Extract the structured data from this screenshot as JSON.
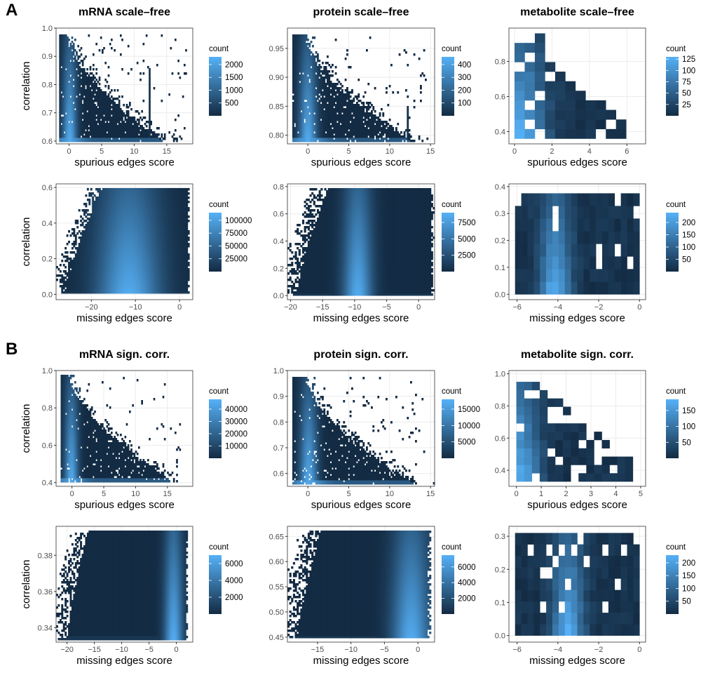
{
  "panels": [
    {
      "label": "A",
      "row": 0
    },
    {
      "label": "B",
      "row": 2
    }
  ],
  "chart_data": [
    {
      "type": "heatmap",
      "id": "A-mrna-spurious",
      "title": "mRNA scale–free",
      "xlabel": "spurious edges score",
      "ylabel": "correlation",
      "xlim": [
        -2,
        19
      ],
      "ylim": [
        0.59,
        1.0
      ],
      "xticks": [
        0,
        5,
        10,
        15
      ],
      "yticks": [
        0.6,
        0.7,
        0.8,
        0.9,
        1.0
      ],
      "yticklabels": [
        "0.6",
        "0.7",
        "0.8",
        "0.9",
        "1.0"
      ],
      "legend_title": "count",
      "legend_max": 2300,
      "legend_ticks": [
        500,
        1000,
        1500,
        2000
      ],
      "shape": "spurious",
      "shape_params": {
        "xmin": -1.5,
        "peak": -0.3,
        "ridge_end": 14.5,
        "vmax": 0.98,
        "vmin": 0.6,
        "ridge_spread": 4,
        "noise_x": 18,
        "spike": 12.3,
        "spike_top": 0.86
      }
    },
    {
      "type": "heatmap",
      "id": "A-protein-spurious",
      "title": "protein scale–free",
      "xlabel": "spurious edges score",
      "ylabel": "",
      "xlim": [
        -2.5,
        15.5
      ],
      "ylim": [
        0.785,
        0.985
      ],
      "xticks": [
        0,
        5,
        10,
        15
      ],
      "yticks": [
        0.8,
        0.85,
        0.9,
        0.95
      ],
      "yticklabels": [
        "0.80",
        "0.85",
        "0.90",
        "0.95"
      ],
      "legend_title": "count",
      "legend_max": 460,
      "legend_ticks": [
        100,
        200,
        300,
        400
      ],
      "shape": "spurious",
      "shape_params": {
        "xmin": -1.8,
        "peak": -0.4,
        "ridge_end": 12.5,
        "vmax": 0.975,
        "vmin": 0.79,
        "ridge_spread": 3,
        "noise_x": 14.5,
        "spike": 12.2,
        "spike_top": 0.85
      }
    },
    {
      "type": "heatmap",
      "id": "A-metabolite-spurious",
      "title": "metabolite scale–free",
      "xlabel": "spurious edges score",
      "ylabel": "",
      "xlim": [
        -0.3,
        7.0
      ],
      "ylim": [
        0.33,
        0.99
      ],
      "xticks": [
        0,
        2,
        4,
        6
      ],
      "yticks": [
        0.4,
        0.6,
        0.8
      ],
      "yticklabels": [
        "0.4",
        "0.6",
        "0.8"
      ],
      "legend_title": "count",
      "legend_max": 130,
      "legend_ticks": [
        25,
        50,
        75,
        100,
        125
      ],
      "shape": "coarse",
      "shape_params": {
        "nx": 12,
        "ny": 11,
        "xmin": 0,
        "xmax": 6.5,
        "ymin": 0.36,
        "ymax": 0.96,
        "bright_col": 0
      }
    },
    {
      "type": "heatmap",
      "id": "A-mrna-missing",
      "title": "",
      "xlabel": "missing edges score",
      "ylabel": "correlation",
      "xlim": [
        -28,
        3
      ],
      "ylim": [
        -0.03,
        0.62
      ],
      "xticks": [
        -20,
        -10,
        0
      ],
      "yticks": [
        0.0,
        0.2,
        0.4,
        0.6
      ],
      "yticklabels": [
        "0.0",
        "0.2",
        "0.4",
        "0.6"
      ],
      "legend_title": "count",
      "legend_max": 115000,
      "legend_ticks": [
        25000,
        50000,
        75000,
        100000
      ],
      "shape": "missing",
      "shape_params": {
        "xmin": -26,
        "xmax": 1.8,
        "ymin": 0,
        "ymax": 0.6,
        "peak": -11.5,
        "spread": 5,
        "tilt": 0.7
      }
    },
    {
      "type": "heatmap",
      "id": "A-protein-missing",
      "title": "",
      "xlabel": "missing edges score",
      "ylabel": "",
      "xlim": [
        -20.5,
        2.5
      ],
      "ylim": [
        -0.03,
        0.82
      ],
      "xticks": [
        -20,
        -15,
        -10,
        -5,
        0
      ],
      "yticks": [
        0.0,
        0.2,
        0.4,
        0.6,
        0.8
      ],
      "yticklabels": [
        "0.0",
        "0.2",
        "0.4",
        "0.6",
        "0.8"
      ],
      "legend_title": "count",
      "legend_max": 9000,
      "legend_ticks": [
        2500,
        5000,
        7500
      ],
      "shape": "missing",
      "shape_params": {
        "xmin": -19,
        "xmax": 1.8,
        "ymin": 0,
        "ymax": 0.79,
        "peak": -9.5,
        "spread": 1.6,
        "tilt": 0.3
      }
    },
    {
      "type": "heatmap",
      "id": "A-metabolite-missing",
      "title": "",
      "xlabel": "missing edges score",
      "ylabel": "",
      "xlim": [
        -6.4,
        0.3
      ],
      "ylim": [
        -0.02,
        0.41
      ],
      "xticks": [
        -6,
        -4,
        -2,
        0
      ],
      "yticks": [
        0.0,
        0.1,
        0.2,
        0.3,
        0.4
      ],
      "yticklabels": [
        "0.0",
        "0.1",
        "0.2",
        "0.3",
        "0.4"
      ],
      "legend_title": "count",
      "legend_max": 240,
      "legend_ticks": [
        50,
        100,
        150,
        200
      ],
      "shape": "coarse",
      "shape_params": {
        "nx": 20,
        "ny": 8,
        "xmin": -6.1,
        "xmax": 0,
        "ymin": 0,
        "ymax": 0.375,
        "bright_col": 6
      }
    },
    {
      "type": "heatmap",
      "id": "B-mrna-spurious",
      "title": "mRNA sign. corr.",
      "xlabel": "spurious edges score",
      "ylabel": "correlation",
      "xlim": [
        -2.5,
        19
      ],
      "ylim": [
        0.38,
        1.0
      ],
      "xticks": [
        0,
        5,
        10,
        15
      ],
      "yticks": [
        0.4,
        0.6,
        0.8,
        1.0
      ],
      "yticklabels": [
        "0.4",
        "0.6",
        "0.8",
        "1.0"
      ],
      "legend_title": "count",
      "legend_max": 48000,
      "legend_ticks": [
        10000,
        20000,
        30000,
        40000
      ],
      "shape": "spurious",
      "shape_params": {
        "xmin": -1.8,
        "peak": -0.5,
        "ridge_end": 16,
        "vmax": 0.98,
        "vmin": 0.4,
        "ridge_spread": 3,
        "noise_x": 17,
        "spike": null,
        "spike_top": 0
      }
    },
    {
      "type": "heatmap",
      "id": "B-protein-spurious",
      "title": "protein sign. corr.",
      "xlabel": "spurious edges score",
      "ylabel": "",
      "xlim": [
        -2.5,
        15.5
      ],
      "ylim": [
        0.55,
        1.0
      ],
      "xticks": [
        0,
        5,
        10,
        15
      ],
      "yticks": [
        0.6,
        0.7,
        0.8,
        0.9,
        1.0
      ],
      "yticklabels": [
        "0.6",
        "0.7",
        "0.8",
        "0.9",
        "1.0"
      ],
      "legend_title": "count",
      "legend_max": 18000,
      "legend_ticks": [
        5000,
        10000,
        15000
      ],
      "shape": "spurious",
      "shape_params": {
        "xmin": -1.8,
        "peak": -0.3,
        "ridge_end": 13,
        "vmax": 0.975,
        "vmin": 0.56,
        "ridge_spread": 3,
        "noise_x": 14.5,
        "spike": null,
        "spike_top": 0
      }
    },
    {
      "type": "heatmap",
      "id": "B-metabolite-spurious",
      "title": "metabolite sign. corr.",
      "xlabel": "spurious edges score",
      "ylabel": "",
      "xlim": [
        -0.3,
        5.2
      ],
      "ylim": [
        0.3,
        1.02
      ],
      "xticks": [
        0,
        1,
        2,
        3,
        4,
        5
      ],
      "yticks": [
        0.4,
        0.6,
        0.8,
        1.0
      ],
      "yticklabels": [
        "0.4",
        "0.6",
        "0.8",
        "1.0"
      ],
      "legend_title": "count",
      "legend_max": 185,
      "legend_ticks": [
        50,
        100,
        150
      ],
      "shape": "coarse",
      "shape_params": {
        "nx": 16,
        "ny": 12,
        "xmin": 0,
        "xmax": 5,
        "ymin": 0.33,
        "ymax": 0.95,
        "bright_col": 0
      }
    },
    {
      "type": "heatmap",
      "id": "B-mrna-missing",
      "title": "",
      "xlabel": "missing edges score",
      "ylabel": "correlation",
      "xlim": [
        -22,
        3
      ],
      "ylim": [
        0.332,
        0.396
      ],
      "xticks": [
        -20,
        -15,
        -10,
        -5,
        0
      ],
      "yticks": [
        0.34,
        0.36,
        0.38
      ],
      "yticklabels": [
        "0.34",
        "0.36",
        "0.38"
      ],
      "legend_title": "count",
      "legend_max": 7000,
      "legend_ticks": [
        2000,
        4000,
        6000
      ],
      "shape": "missing",
      "shape_params": {
        "xmin": -20,
        "xmax": 1.6,
        "ymin": 0.3335,
        "ymax": 0.394,
        "peak": -0.5,
        "spread": 1.2,
        "tilt": 0
      }
    },
    {
      "type": "heatmap",
      "id": "B-protein-missing",
      "title": "",
      "xlabel": "missing edges score",
      "ylabel": "",
      "xlim": [
        -19.5,
        2.5
      ],
      "ylim": [
        0.44,
        0.67
      ],
      "xticks": [
        -15,
        -10,
        -5,
        0
      ],
      "yticks": [
        0.45,
        0.5,
        0.55,
        0.6,
        0.65
      ],
      "yticklabels": [
        "0.45",
        "0.50",
        "0.55",
        "0.60",
        "0.65"
      ],
      "legend_title": "count",
      "legend_max": 7500,
      "legend_ticks": [
        2000,
        4000,
        6000
      ],
      "shape": "missing",
      "shape_params": {
        "xmin": -18,
        "xmax": 1.4,
        "ymin": 0.448,
        "ymax": 0.66,
        "peak": -1,
        "spread": 2,
        "tilt": 0
      }
    },
    {
      "type": "heatmap",
      "id": "B-metabolite-missing",
      "title": "",
      "xlabel": "missing edges score",
      "ylabel": "",
      "xlim": [
        -6.4,
        0.3
      ],
      "ylim": [
        -0.02,
        0.33
      ],
      "xticks": [
        -6,
        -4,
        -2,
        0
      ],
      "yticks": [
        0.0,
        0.1,
        0.2,
        0.3
      ],
      "yticklabels": [
        "0.0",
        "0.1",
        "0.2",
        "0.3"
      ],
      "legend_title": "count",
      "legend_max": 230,
      "legend_ticks": [
        50,
        100,
        150,
        200
      ],
      "shape": "coarse",
      "shape_params": {
        "nx": 20,
        "ny": 9,
        "xmin": -6.1,
        "xmax": 0,
        "ymin": 0,
        "ymax": 0.31,
        "bright_col": 8
      }
    }
  ]
}
